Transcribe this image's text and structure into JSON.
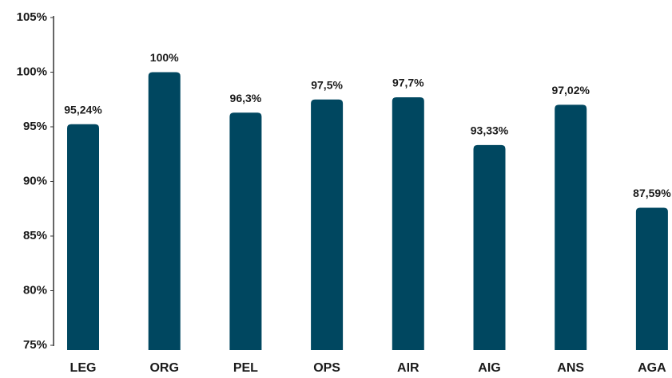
{
  "chart_data": {
    "type": "bar",
    "categories": [
      "LEG",
      "ORG",
      "PEL",
      "OPS",
      "AIR",
      "AIG",
      "ANS",
      "AGA"
    ],
    "values": [
      95.24,
      100,
      96.3,
      97.5,
      97.7,
      93.33,
      97.02,
      87.59
    ],
    "value_labels": [
      "95,24%",
      "100%",
      "96,3%",
      "97,5%",
      "97,7%",
      "93,33%",
      "97,02%",
      "87,59%"
    ],
    "color": "#004760",
    "ylim": [
      75,
      105
    ],
    "yticks": [
      {
        "value": 75,
        "label": "75%"
      },
      {
        "value": 80,
        "label": "80%"
      },
      {
        "value": 85,
        "label": "85%"
      },
      {
        "value": 90,
        "label": "90%"
      },
      {
        "value": 95,
        "label": "95%"
      },
      {
        "value": 100,
        "label": "100%"
      },
      {
        "value": 105,
        "label": "105%"
      }
    ],
    "grid": false
  }
}
